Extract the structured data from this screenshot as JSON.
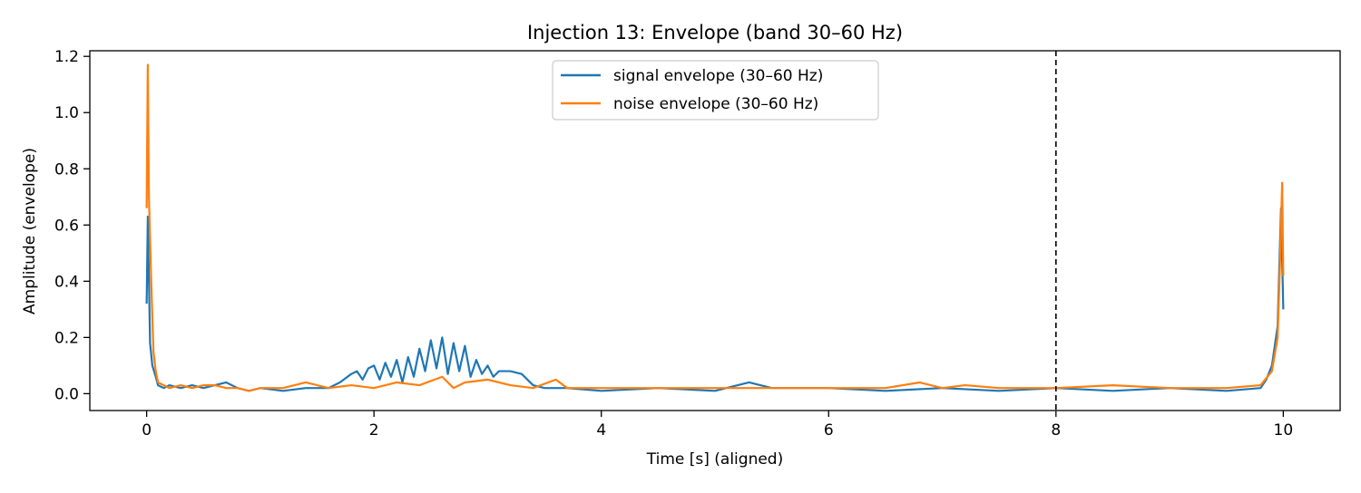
{
  "chart_data": {
    "type": "line",
    "title": "Injection 13: Envelope (band 30–60 Hz)",
    "xlabel": "Time [s] (aligned)",
    "ylabel": "Amplitude (envelope)",
    "xlim": [
      -0.5,
      10.5
    ],
    "ylim": [
      -0.06,
      1.22
    ],
    "xticks": [
      0,
      2,
      4,
      6,
      8,
      10
    ],
    "xtick_labels": [
      "0",
      "2",
      "4",
      "6",
      "8",
      "10"
    ],
    "yticks": [
      0.0,
      0.2,
      0.4,
      0.6,
      0.8,
      1.0,
      1.2
    ],
    "ytick_labels": [
      "0.0",
      "0.2",
      "0.4",
      "0.6",
      "0.8",
      "1.0",
      "1.2"
    ],
    "grid": false,
    "legend_position": "top-center",
    "vline": {
      "x": 8,
      "style": "dashed",
      "color": "#000000"
    },
    "series": [
      {
        "name": "signal envelope (30–60 Hz)",
        "color": "#1f77b4",
        "x": [
          0,
          0.01,
          0.03,
          0.05,
          0.08,
          0.1,
          0.15,
          0.2,
          0.3,
          0.4,
          0.5,
          0.6,
          0.7,
          0.8,
          0.9,
          1.0,
          1.2,
          1.4,
          1.6,
          1.7,
          1.8,
          1.85,
          1.9,
          1.95,
          2.0,
          2.05,
          2.1,
          2.15,
          2.2,
          2.25,
          2.3,
          2.35,
          2.4,
          2.45,
          2.5,
          2.55,
          2.6,
          2.65,
          2.7,
          2.75,
          2.8,
          2.85,
          2.9,
          2.95,
          3.0,
          3.05,
          3.1,
          3.2,
          3.3,
          3.4,
          3.5,
          3.7,
          4.0,
          4.5,
          5.0,
          5.3,
          5.5,
          6.0,
          6.5,
          7.0,
          7.5,
          8.0,
          8.5,
          9.0,
          9.5,
          9.8,
          9.85,
          9.9,
          9.95,
          9.98,
          10.0
        ],
        "values": [
          0.32,
          0.63,
          0.18,
          0.1,
          0.06,
          0.03,
          0.02,
          0.03,
          0.02,
          0.03,
          0.02,
          0.03,
          0.04,
          0.02,
          0.01,
          0.02,
          0.01,
          0.02,
          0.02,
          0.04,
          0.07,
          0.08,
          0.05,
          0.09,
          0.1,
          0.05,
          0.11,
          0.06,
          0.12,
          0.04,
          0.13,
          0.06,
          0.16,
          0.08,
          0.19,
          0.09,
          0.2,
          0.07,
          0.18,
          0.08,
          0.17,
          0.06,
          0.12,
          0.07,
          0.1,
          0.06,
          0.08,
          0.08,
          0.07,
          0.03,
          0.02,
          0.02,
          0.01,
          0.02,
          0.01,
          0.04,
          0.02,
          0.02,
          0.01,
          0.02,
          0.01,
          0.02,
          0.01,
          0.02,
          0.01,
          0.02,
          0.05,
          0.1,
          0.24,
          0.66,
          0.3
        ]
      },
      {
        "name": "noise envelope (30–60 Hz)",
        "color": "#ff7f0e",
        "x": [
          0,
          0.01,
          0.02,
          0.04,
          0.06,
          0.08,
          0.1,
          0.15,
          0.2,
          0.3,
          0.4,
          0.5,
          0.6,
          0.7,
          0.8,
          0.9,
          1.0,
          1.2,
          1.4,
          1.6,
          1.8,
          2.0,
          2.2,
          2.4,
          2.6,
          2.7,
          2.8,
          3.0,
          3.2,
          3.4,
          3.6,
          3.7,
          4.0,
          4.5,
          5.0,
          5.5,
          6.0,
          6.5,
          6.8,
          7.0,
          7.2,
          7.5,
          8.0,
          8.5,
          9.0,
          9.5,
          9.8,
          9.9,
          9.95,
          9.97,
          9.99,
          10.0
        ],
        "values": [
          0.66,
          1.17,
          0.7,
          0.4,
          0.15,
          0.08,
          0.04,
          0.03,
          0.02,
          0.03,
          0.02,
          0.03,
          0.03,
          0.02,
          0.02,
          0.01,
          0.02,
          0.02,
          0.04,
          0.02,
          0.03,
          0.02,
          0.04,
          0.03,
          0.06,
          0.02,
          0.04,
          0.05,
          0.03,
          0.02,
          0.05,
          0.02,
          0.02,
          0.02,
          0.02,
          0.02,
          0.02,
          0.02,
          0.04,
          0.02,
          0.03,
          0.02,
          0.02,
          0.03,
          0.02,
          0.02,
          0.03,
          0.08,
          0.2,
          0.45,
          0.75,
          0.42
        ]
      }
    ]
  }
}
